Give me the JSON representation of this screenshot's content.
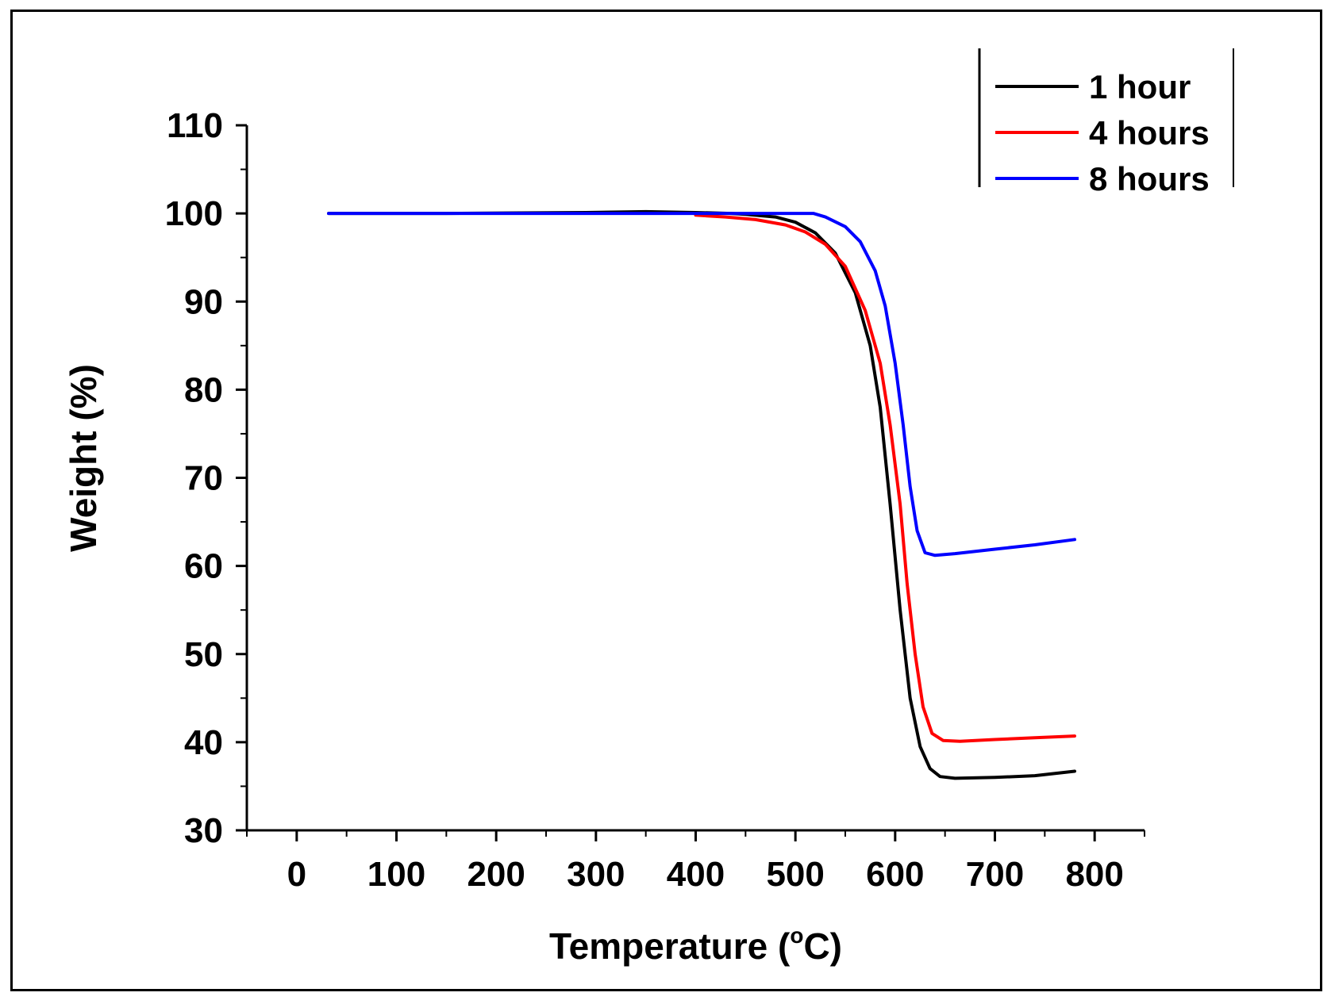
{
  "chart_data": {
    "type": "line",
    "title": "",
    "xlabel": "Temperature (°C)",
    "xlabel_main": "Temperature (",
    "xlabel_degree": "o",
    "xlabel_unit": "C)",
    "ylabel": "Weight (%)",
    "xlim": [
      -50,
      850
    ],
    "ylim": [
      30,
      110
    ],
    "xticks": [
      0,
      100,
      200,
      300,
      400,
      500,
      600,
      700,
      800
    ],
    "yticks": [
      30,
      40,
      50,
      60,
      70,
      80,
      90,
      100,
      110
    ],
    "legend_position": "top-right",
    "series": [
      {
        "name": "1 hour",
        "color": "#000000",
        "points": [
          [
            32,
            100
          ],
          [
            150,
            100
          ],
          [
            290,
            100.1
          ],
          [
            350,
            100.2
          ],
          [
            400,
            100.1
          ],
          [
            435,
            100.0
          ],
          [
            450,
            99.9
          ],
          [
            480,
            99.6
          ],
          [
            500,
            99.0
          ],
          [
            520,
            97.8
          ],
          [
            540,
            95.5
          ],
          [
            560,
            91
          ],
          [
            575,
            85
          ],
          [
            585,
            78
          ],
          [
            595,
            67
          ],
          [
            605,
            55
          ],
          [
            615,
            45
          ],
          [
            625,
            39.5
          ],
          [
            635,
            37
          ],
          [
            645,
            36.1
          ],
          [
            660,
            35.9
          ],
          [
            700,
            36.0
          ],
          [
            740,
            36.2
          ],
          [
            780,
            36.7
          ]
        ]
      },
      {
        "name": "4 hours",
        "color": "#ff0000",
        "points": [
          [
            400,
            99.8
          ],
          [
            430,
            99.6
          ],
          [
            460,
            99.3
          ],
          [
            490,
            98.7
          ],
          [
            510,
            97.9
          ],
          [
            530,
            96.5
          ],
          [
            550,
            94
          ],
          [
            570,
            89
          ],
          [
            585,
            83
          ],
          [
            595,
            76
          ],
          [
            605,
            67
          ],
          [
            612,
            58
          ],
          [
            620,
            50
          ],
          [
            628,
            44
          ],
          [
            637,
            41
          ],
          [
            648,
            40.2
          ],
          [
            665,
            40.1
          ],
          [
            700,
            40.3
          ],
          [
            740,
            40.5
          ],
          [
            780,
            40.7
          ]
        ]
      },
      {
        "name": "8 hours",
        "color": "#0000ff",
        "points": [
          [
            32,
            100
          ],
          [
            200,
            100
          ],
          [
            350,
            100
          ],
          [
            450,
            100
          ],
          [
            500,
            100
          ],
          [
            518,
            100
          ],
          [
            530,
            99.6
          ],
          [
            550,
            98.5
          ],
          [
            565,
            96.8
          ],
          [
            580,
            93.5
          ],
          [
            590,
            89.5
          ],
          [
            600,
            83
          ],
          [
            608,
            76
          ],
          [
            615,
            69
          ],
          [
            622,
            64
          ],
          [
            630,
            61.5
          ],
          [
            640,
            61.2
          ],
          [
            660,
            61.4
          ],
          [
            700,
            61.9
          ],
          [
            740,
            62.4
          ],
          [
            780,
            63.0
          ]
        ]
      }
    ]
  },
  "legend": {
    "items": [
      {
        "label": "1 hour",
        "color": "#000000"
      },
      {
        "label": "4 hours",
        "color": "#ff0000"
      },
      {
        "label": "8 hours",
        "color": "#0000ff"
      }
    ]
  }
}
